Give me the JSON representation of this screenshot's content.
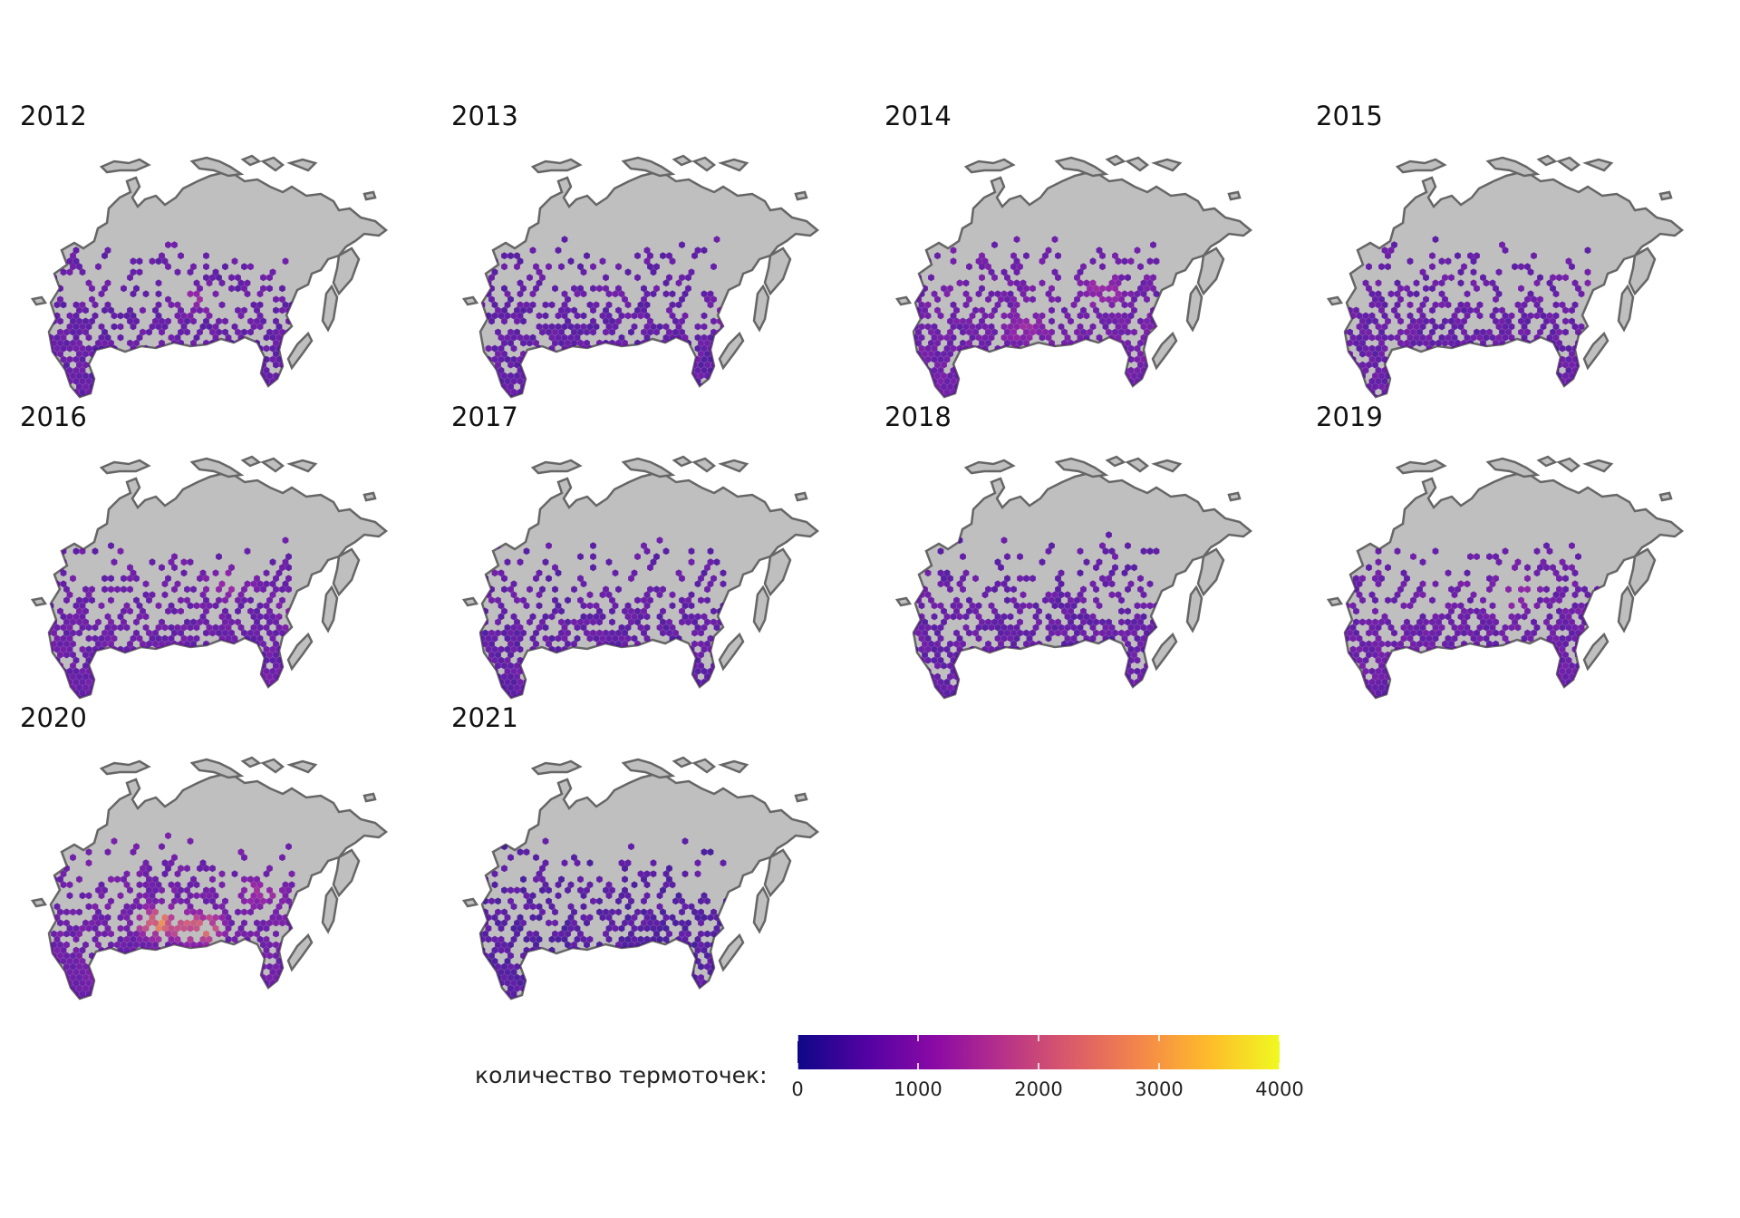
{
  "panels": [
    {
      "year": "2012",
      "intensity": 0.32,
      "hotspots": [
        [
          0.58,
          0.45,
          0.9
        ]
      ]
    },
    {
      "year": "2013",
      "intensity": 0.3,
      "hotspots": [
        [
          0.62,
          0.7,
          0.9
        ]
      ]
    },
    {
      "year": "2014",
      "intensity": 0.4,
      "hotspots": [
        [
          0.55,
          0.55,
          1.0
        ],
        [
          0.68,
          0.35,
          0.8
        ],
        [
          0.7,
          0.85,
          1.2
        ]
      ]
    },
    {
      "year": "2015",
      "intensity": 0.33,
      "hotspots": [
        [
          0.55,
          0.72,
          0.9
        ]
      ]
    },
    {
      "year": "2016",
      "intensity": 0.36,
      "hotspots": [
        [
          0.52,
          0.52,
          0.8
        ],
        [
          0.65,
          0.7,
          0.9
        ]
      ]
    },
    {
      "year": "2017",
      "intensity": 0.3,
      "hotspots": [
        [
          0.63,
          0.85,
          0.9
        ]
      ]
    },
    {
      "year": "2018",
      "intensity": 0.32,
      "hotspots": [
        [
          0.68,
          0.82,
          1.0
        ]
      ]
    },
    {
      "year": "2019",
      "intensity": 0.36,
      "hotspots": [
        [
          0.55,
          0.5,
          1.1
        ],
        [
          0.66,
          0.8,
          1.0
        ]
      ]
    },
    {
      "year": "2020",
      "intensity": 0.4,
      "hotspots": [
        [
          0.66,
          0.35,
          3.2
        ],
        [
          0.68,
          0.45,
          3.0
        ],
        [
          0.55,
          0.6,
          1.0
        ]
      ]
    },
    {
      "year": "2021",
      "intensity": 0.22,
      "hotspots": []
    }
  ],
  "legend": {
    "label": "количество термоточек:",
    "ticks": [
      "0",
      "1000",
      "2000",
      "3000",
      "4000"
    ],
    "max": 4000,
    "colorscale": [
      "#0d0887",
      "#5302a3",
      "#8b0aa5",
      "#b83289",
      "#db5c68",
      "#f48849",
      "#febd2a",
      "#f0f921"
    ]
  },
  "colors": {
    "land": "#bfbfbf",
    "outline": "#666666"
  }
}
